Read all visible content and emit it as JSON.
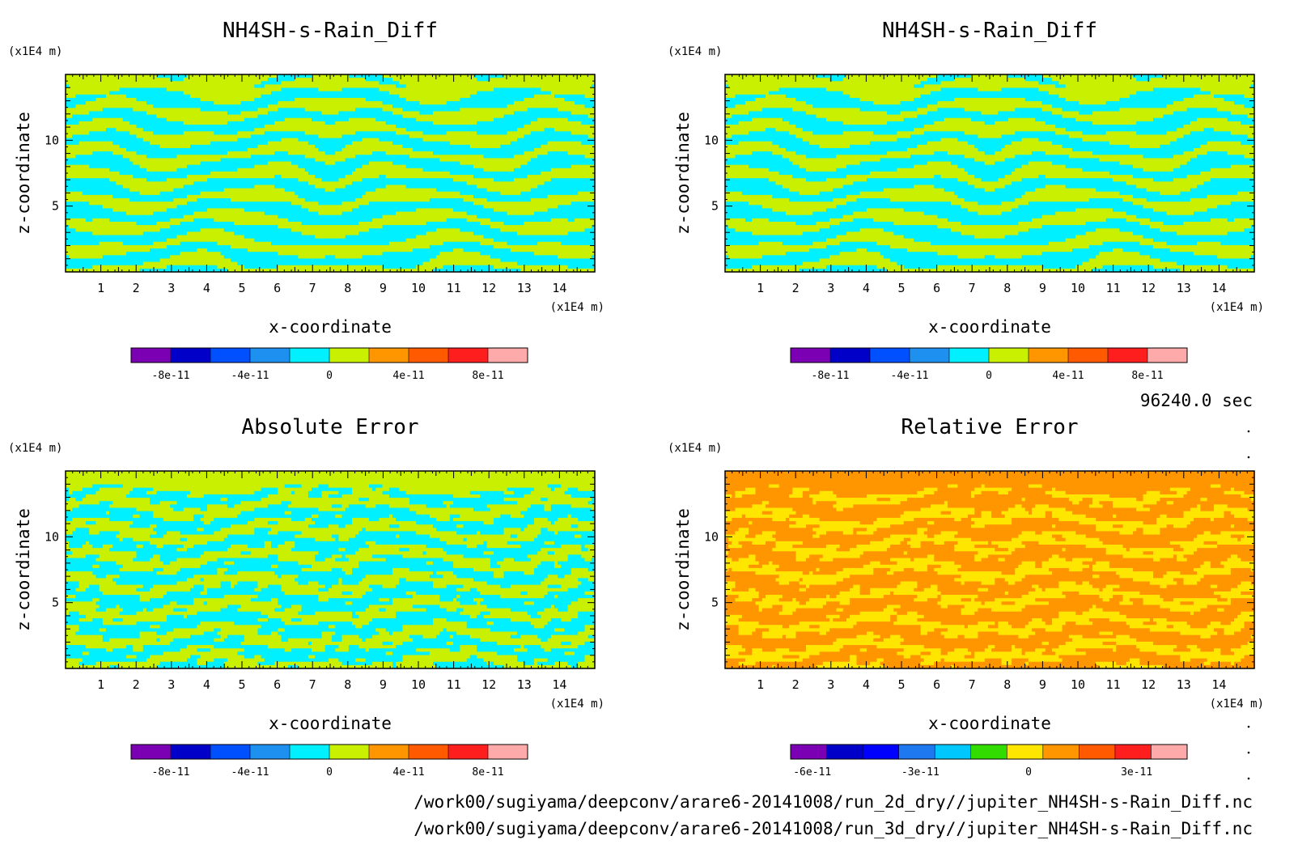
{
  "time_label": "96240.0 sec",
  "file_paths": [
    "/work00/sugiyama/deepconv/arare6-20141008/run_2d_dry//jupiter_NH4SH-s-Rain_Diff.nc",
    "/work00/sugiyama/deepconv/arare6-20141008/run_3d_dry//jupiter_NH4SH-s-Rain_Diff.nc"
  ],
  "colors": {
    "rainbow11": [
      "#7b00b4",
      "#0000c8",
      "#0050ff",
      "#1e90f0",
      "#00f0ff",
      "#c8f000",
      "#ff9600",
      "#ff5a00",
      "#ff1e1e",
      "#ffaaaa"
    ],
    "relative12": [
      "#7b00b4",
      "#0000c8",
      "#0000ff",
      "#1e78f0",
      "#00c8ff",
      "#32dc00",
      "#ffe600",
      "#ff9600",
      "#ff5a00",
      "#ff1e1e",
      "#ffaaaa"
    ]
  },
  "chart_data": [
    {
      "type": "heatmap",
      "title": "NH4SH-s-Rain_Diff",
      "xlabel": "x-coordinate",
      "ylabel": "z-coordinate",
      "xunit": "(x1E4 m)",
      "yunit": "(x1E4 m)",
      "xlim": [
        0,
        15
      ],
      "ylim": [
        0,
        15
      ],
      "xticks": [
        1,
        2,
        3,
        4,
        5,
        6,
        7,
        8,
        9,
        10,
        11,
        12,
        13,
        14
      ],
      "yticks": [
        5,
        10
      ],
      "colorbar": {
        "range": [
          -1e-10,
          1e-10
        ],
        "levels": 10,
        "labels": [
          "-8e-11",
          "-4e-11",
          "0",
          "4e-11",
          "8e-11"
        ],
        "label_values": [
          -8e-11,
          -4e-11,
          0,
          4e-11,
          8e-11
        ]
      },
      "dominant_classes": [
        "0 to 2e-11 (yellow-green)",
        "-2e-11 to 0 (cyan)"
      ],
      "pattern": "layered banded"
    },
    {
      "type": "heatmap",
      "title": "NH4SH-s-Rain_Diff",
      "xlabel": "x-coordinate",
      "ylabel": "z-coordinate",
      "xunit": "(x1E4 m)",
      "yunit": "(x1E4 m)",
      "xlim": [
        0,
        15
      ],
      "ylim": [
        0,
        15
      ],
      "xticks": [
        1,
        2,
        3,
        4,
        5,
        6,
        7,
        8,
        9,
        10,
        11,
        12,
        13,
        14
      ],
      "yticks": [
        5,
        10
      ],
      "colorbar": {
        "range": [
          -1e-10,
          1e-10
        ],
        "levels": 10,
        "labels": [
          "-8e-11",
          "-4e-11",
          "0",
          "4e-11",
          "8e-11"
        ],
        "label_values": [
          -8e-11,
          -4e-11,
          0,
          4e-11,
          8e-11
        ]
      },
      "dominant_classes": [
        "0 to 2e-11 (yellow-green)",
        "-2e-11 to 0 (cyan)"
      ],
      "pattern": "layered banded"
    },
    {
      "type": "heatmap",
      "title": "Absolute Error",
      "xlabel": "x-coordinate",
      "ylabel": "z-coordinate",
      "xunit": "(x1E4 m)",
      "yunit": "(x1E4 m)",
      "xlim": [
        0,
        15
      ],
      "ylim": [
        0,
        15
      ],
      "xticks": [
        1,
        2,
        3,
        4,
        5,
        6,
        7,
        8,
        9,
        10,
        11,
        12,
        13,
        14
      ],
      "yticks": [
        5,
        10
      ],
      "colorbar": {
        "range": [
          -1e-10,
          1e-10
        ],
        "levels": 10,
        "labels": [
          "-8e-11",
          "-4e-11",
          "0",
          "4e-11",
          "8e-11"
        ],
        "label_values": [
          -8e-11,
          -4e-11,
          0,
          4e-11,
          8e-11
        ]
      },
      "dominant_classes": [
        "0 to 2e-11 (yellow-green)",
        "-2e-11 to 0 (cyan)"
      ],
      "pattern": "noisy speckled"
    },
    {
      "type": "heatmap",
      "title": "Relative Error",
      "xlabel": "x-coordinate",
      "ylabel": "z-coordinate",
      "xunit": "(x1E4 m)",
      "yunit": "(x1E4 m)",
      "xlim": [
        0,
        15
      ],
      "ylim": [
        0,
        15
      ],
      "xticks": [
        1,
        2,
        3,
        4,
        5,
        6,
        7,
        8,
        9,
        10,
        11,
        12,
        13,
        14
      ],
      "yticks": [
        5,
        10
      ],
      "colorbar": {
        "range": [
          -6.6e-11,
          4.4e-11
        ],
        "levels": 11,
        "labels": [
          "-6e-11",
          "-3e-11",
          "0",
          "3e-11"
        ],
        "label_values": [
          -6e-11,
          -3e-11,
          0,
          3e-11
        ]
      },
      "dominant_classes": [
        "1e-11 to 2e-11 (orange)",
        "0 to 1e-11 (yellow)"
      ],
      "pattern": "noisy speckled"
    }
  ]
}
